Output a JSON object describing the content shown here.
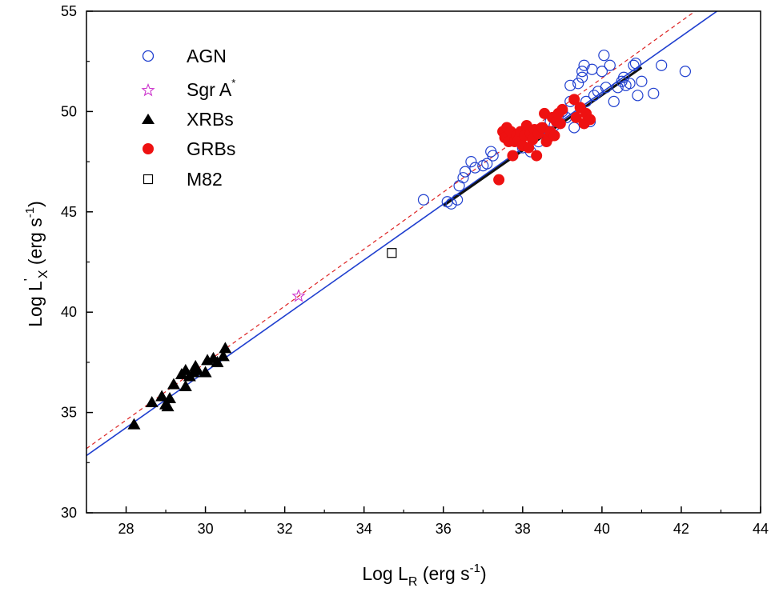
{
  "chart_data": {
    "type": "scatter",
    "title": "",
    "xlabel": {
      "base": "Log L",
      "sub": "R",
      "unit_pre": " (erg s",
      "sup": "-1",
      "unit_post": ")"
    },
    "ylabel": {
      "base": "Log L",
      "prime": "'",
      "sub": "X",
      "unit_pre": " (erg s",
      "sup": "-1",
      "unit_post": ")"
    },
    "xlim": [
      27,
      44
    ],
    "ylim": [
      30,
      55
    ],
    "xticks": [
      "28",
      "30",
      "32",
      "34",
      "36",
      "38",
      "40",
      "42",
      "44"
    ],
    "yticks": [
      "30",
      "35",
      "40",
      "45",
      "50",
      "55"
    ],
    "legend_position": "top-left",
    "series": [
      {
        "name": "AGN",
        "marker": "open-circle",
        "color": "#1f3fcf",
        "points": [
          [
            35.5,
            45.6
          ],
          [
            36.1,
            45.5
          ],
          [
            36.2,
            45.4
          ],
          [
            36.35,
            45.6
          ],
          [
            36.4,
            46.3
          ],
          [
            36.5,
            46.7
          ],
          [
            36.55,
            47.0
          ],
          [
            36.7,
            47.5
          ],
          [
            36.8,
            47.2
          ],
          [
            37.0,
            47.3
          ],
          [
            37.1,
            47.4
          ],
          [
            37.2,
            48.0
          ],
          [
            37.25,
            47.8
          ],
          [
            38.0,
            48.2
          ],
          [
            38.2,
            48.0
          ],
          [
            38.4,
            48.5
          ],
          [
            38.6,
            49.0
          ],
          [
            38.7,
            49.5
          ],
          [
            38.8,
            49.3
          ],
          [
            38.9,
            49.8
          ],
          [
            39.0,
            50.0
          ],
          [
            39.1,
            49.7
          ],
          [
            39.2,
            50.5
          ],
          [
            39.2,
            51.3
          ],
          [
            39.3,
            49.2
          ],
          [
            39.4,
            51.4
          ],
          [
            39.5,
            51.7
          ],
          [
            39.5,
            52.0
          ],
          [
            39.55,
            52.3
          ],
          [
            39.6,
            50.5
          ],
          [
            39.7,
            49.5
          ],
          [
            39.75,
            52.1
          ],
          [
            39.8,
            50.8
          ],
          [
            39.9,
            51.0
          ],
          [
            40.0,
            52.0
          ],
          [
            40.05,
            52.8
          ],
          [
            40.1,
            51.2
          ],
          [
            40.2,
            52.3
          ],
          [
            40.3,
            50.5
          ],
          [
            40.4,
            51.2
          ],
          [
            40.5,
            51.5
          ],
          [
            40.55,
            51.7
          ],
          [
            40.6,
            51.3
          ],
          [
            40.7,
            51.4
          ],
          [
            40.8,
            52.3
          ],
          [
            40.85,
            52.4
          ],
          [
            40.9,
            50.8
          ],
          [
            41.0,
            51.5
          ],
          [
            41.3,
            50.9
          ],
          [
            41.5,
            52.3
          ],
          [
            42.1,
            52.0
          ]
        ]
      },
      {
        "name": "Sgr A",
        "name_sup": "*",
        "marker": "open-star",
        "color": "#cc33cc",
        "points": [
          [
            32.35,
            40.8
          ]
        ]
      },
      {
        "name": "XRBs",
        "marker": "filled-triangle",
        "color": "#000000",
        "points": [
          [
            28.2,
            34.4
          ],
          [
            28.65,
            35.5
          ],
          [
            28.9,
            35.8
          ],
          [
            29.0,
            35.4
          ],
          [
            29.05,
            35.3
          ],
          [
            29.1,
            35.7
          ],
          [
            29.2,
            36.4
          ],
          [
            29.4,
            36.9
          ],
          [
            29.5,
            37.1
          ],
          [
            29.5,
            36.3
          ],
          [
            29.6,
            36.8
          ],
          [
            29.7,
            37.0
          ],
          [
            29.75,
            37.3
          ],
          [
            29.8,
            37.1
          ],
          [
            30.0,
            37.0
          ],
          [
            30.05,
            37.6
          ],
          [
            30.2,
            37.7
          ],
          [
            30.3,
            37.5
          ],
          [
            30.45,
            37.8
          ],
          [
            30.5,
            38.2
          ]
        ]
      },
      {
        "name": "GRBs",
        "marker": "filled-circle",
        "color": "#ee1111",
        "points": [
          [
            37.4,
            46.6
          ],
          [
            37.5,
            49.0
          ],
          [
            37.55,
            48.7
          ],
          [
            37.6,
            49.2
          ],
          [
            37.65,
            48.5
          ],
          [
            37.7,
            49.0
          ],
          [
            37.75,
            47.8
          ],
          [
            37.8,
            48.5
          ],
          [
            37.85,
            48.8
          ],
          [
            37.9,
            48.6
          ],
          [
            37.95,
            49.0
          ],
          [
            38.0,
            48.3
          ],
          [
            38.05,
            48.8
          ],
          [
            38.1,
            49.3
          ],
          [
            38.15,
            48.2
          ],
          [
            38.2,
            48.9
          ],
          [
            38.25,
            48.6
          ],
          [
            38.3,
            49.1
          ],
          [
            38.35,
            47.8
          ],
          [
            38.4,
            48.9
          ],
          [
            38.5,
            49.2
          ],
          [
            38.55,
            49.9
          ],
          [
            38.6,
            48.5
          ],
          [
            38.65,
            48.7
          ],
          [
            38.7,
            49.0
          ],
          [
            38.75,
            49.7
          ],
          [
            38.8,
            48.8
          ],
          [
            38.85,
            49.5
          ],
          [
            38.9,
            49.9
          ],
          [
            38.95,
            49.4
          ],
          [
            39.0,
            50.1
          ],
          [
            39.3,
            50.6
          ],
          [
            39.35,
            49.7
          ],
          [
            39.45,
            50.2
          ],
          [
            39.55,
            49.4
          ],
          [
            39.6,
            49.9
          ],
          [
            39.7,
            49.6
          ]
        ]
      },
      {
        "name": "M82",
        "marker": "open-square",
        "color": "#000000",
        "points": [
          [
            34.7,
            42.95
          ]
        ]
      }
    ],
    "lines": [
      {
        "style": "solid",
        "color": "#1f3fcf",
        "from": [
          27.0,
          32.85
        ],
        "to": [
          42.9,
          55.0
        ]
      },
      {
        "style": "dashed",
        "color": "#dd2222",
        "from": [
          27.0,
          33.2
        ],
        "to": [
          42.35,
          55.0
        ]
      },
      {
        "style": "solid-thick",
        "color": "#111111",
        "from": [
          36.0,
          45.3
        ],
        "to": [
          41.0,
          52.2
        ]
      }
    ]
  }
}
